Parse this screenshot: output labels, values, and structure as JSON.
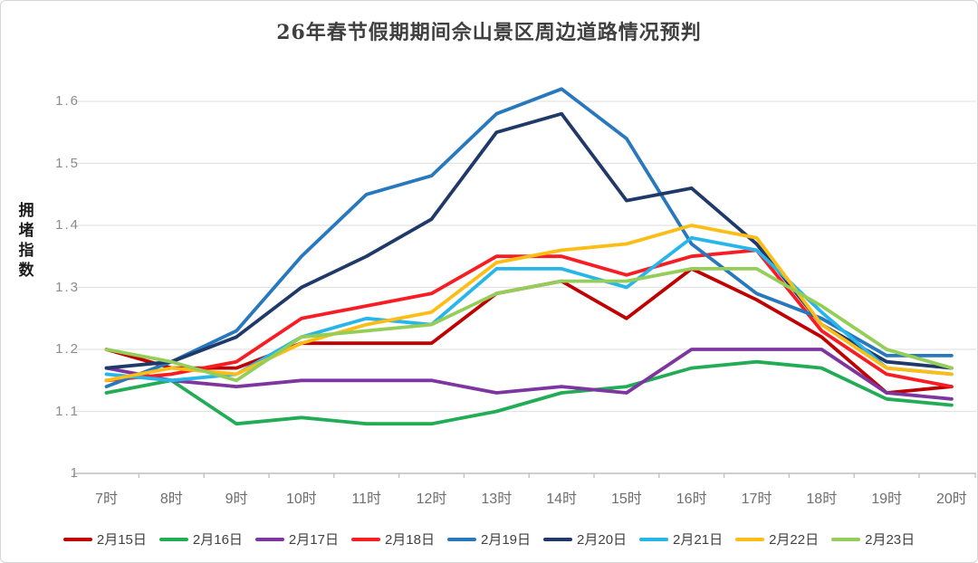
{
  "frame": {
    "background": "#ffffff",
    "border_color": "#d4d4d4"
  },
  "colors": {
    "grid": "#e3e3e3",
    "axis": "#bfbfbf",
    "y_tick_label": "#8c8c8c",
    "x_tick_label": "#6e6e6e",
    "title": "#3f3f3f",
    "legend_label": "#404040"
  },
  "chart_data": {
    "type": "line",
    "title": "26年春节假期期间佘山景区周边道路情况预判",
    "ylabel": "拥堵指数",
    "xlabel": "",
    "categories": [
      "7时",
      "8时",
      "9时",
      "10时",
      "11时",
      "12时",
      "13时",
      "14时",
      "15时",
      "16时",
      "17时",
      "18时",
      "19时",
      "20时"
    ],
    "ylim": [
      1,
      1.6
    ],
    "yticks": [
      1,
      1.1,
      1.2,
      1.3,
      1.4,
      1.5,
      1.6
    ],
    "ytick_labels": [
      "1",
      "1.1",
      "1.2",
      "1.3",
      "1.4",
      "1.5",
      "1.6"
    ],
    "grid": true,
    "legend_position": "bottom",
    "series": [
      {
        "name": "2月15日",
        "color": "#c00000",
        "values": [
          1.2,
          1.17,
          1.17,
          1.21,
          1.21,
          1.21,
          1.29,
          1.31,
          1.25,
          1.33,
          1.28,
          1.22,
          1.13,
          1.14
        ]
      },
      {
        "name": "2月16日",
        "color": "#22ac56",
        "values": [
          1.13,
          1.15,
          1.08,
          1.09,
          1.08,
          1.08,
          1.1,
          1.13,
          1.14,
          1.17,
          1.18,
          1.17,
          1.12,
          1.11
        ]
      },
      {
        "name": "2月17日",
        "color": "#7d35a0",
        "values": [
          1.17,
          1.15,
          1.14,
          1.15,
          1.15,
          1.15,
          1.13,
          1.14,
          1.13,
          1.2,
          1.2,
          1.2,
          1.13,
          1.12
        ]
      },
      {
        "name": "2月18日",
        "color": "#f81d22",
        "values": [
          1.15,
          1.16,
          1.18,
          1.25,
          1.27,
          1.29,
          1.35,
          1.35,
          1.32,
          1.35,
          1.36,
          1.23,
          1.16,
          1.14
        ]
      },
      {
        "name": "2月19日",
        "color": "#2878bd",
        "values": [
          1.14,
          1.18,
          1.23,
          1.35,
          1.45,
          1.48,
          1.58,
          1.62,
          1.54,
          1.37,
          1.29,
          1.25,
          1.19,
          1.19
        ]
      },
      {
        "name": "2月20日",
        "color": "#1f3968",
        "values": [
          1.17,
          1.18,
          1.22,
          1.3,
          1.35,
          1.41,
          1.55,
          1.58,
          1.44,
          1.46,
          1.37,
          1.24,
          1.18,
          1.17
        ]
      },
      {
        "name": "2月21日",
        "color": "#27b5ea",
        "values": [
          1.16,
          1.15,
          1.16,
          1.22,
          1.25,
          1.24,
          1.33,
          1.33,
          1.3,
          1.38,
          1.36,
          1.26,
          1.17,
          1.16
        ]
      },
      {
        "name": "2月22日",
        "color": "#fcbd17",
        "values": [
          1.15,
          1.17,
          1.16,
          1.21,
          1.24,
          1.26,
          1.34,
          1.36,
          1.37,
          1.4,
          1.38,
          1.24,
          1.17,
          1.16
        ]
      },
      {
        "name": "2月23日",
        "color": "#94ce58",
        "values": [
          1.2,
          1.18,
          1.15,
          1.22,
          1.23,
          1.24,
          1.29,
          1.31,
          1.31,
          1.33,
          1.33,
          1.27,
          1.2,
          1.17
        ]
      }
    ]
  }
}
